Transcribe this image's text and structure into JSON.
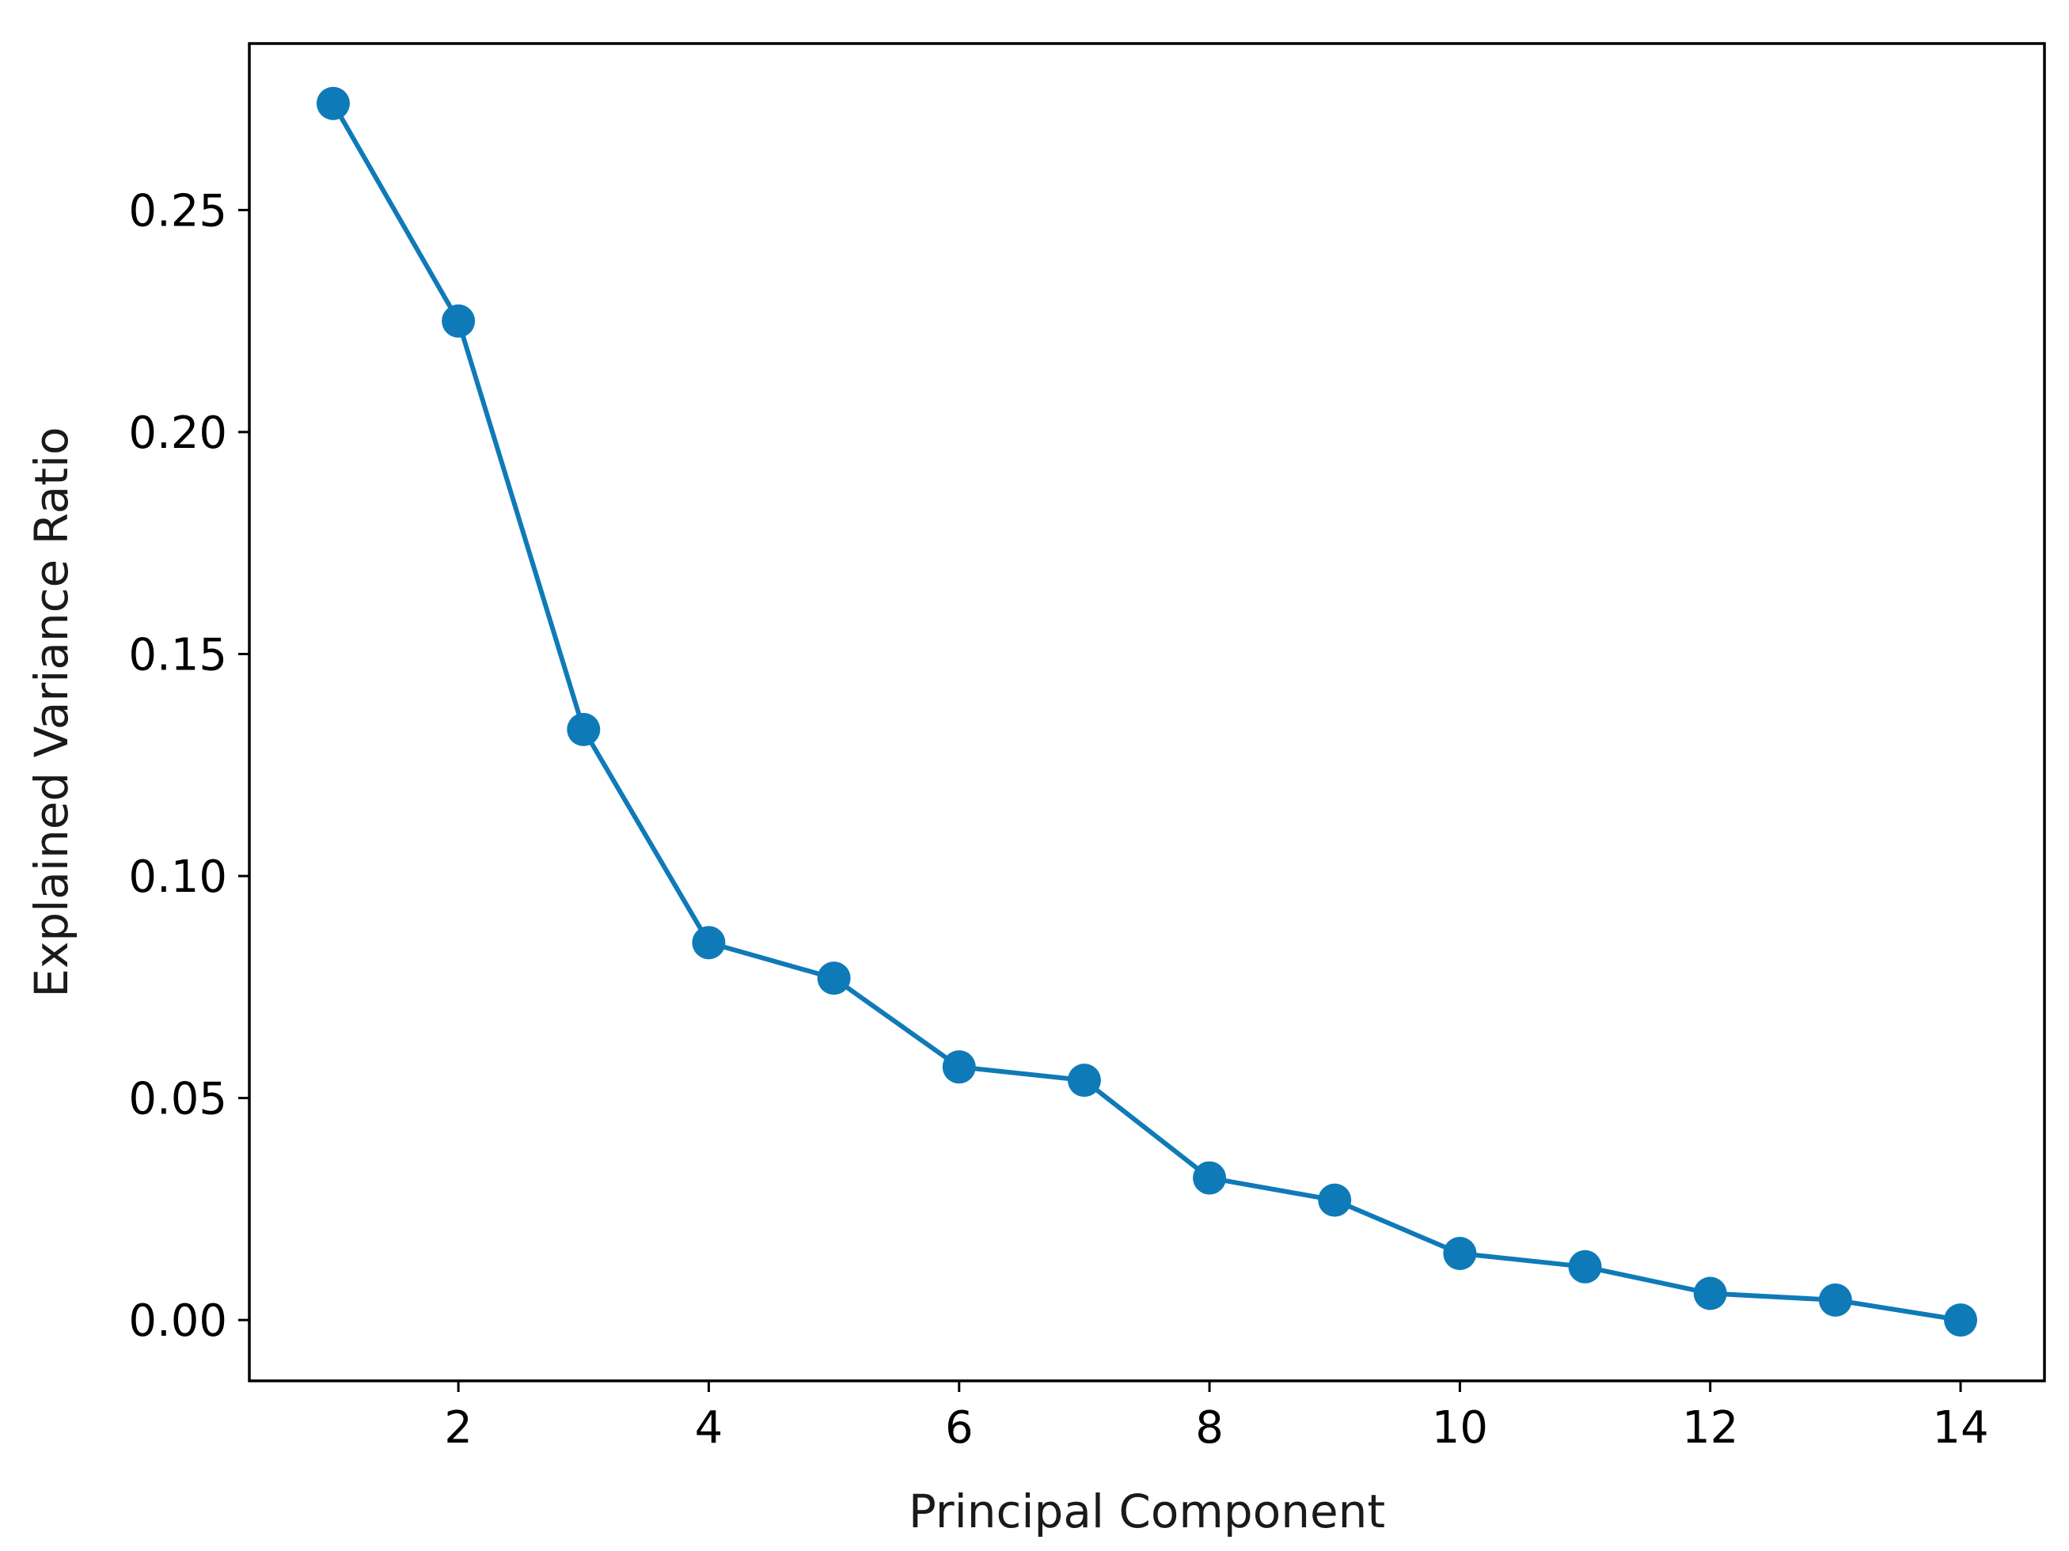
{
  "chart_data": {
    "type": "line",
    "title": "",
    "xlabel": "Principal Component",
    "ylabel": "Explained Variance Ratio",
    "xlim": [
      0.33,
      14.67
    ],
    "ylim": [
      -0.0137,
      0.2875
    ],
    "x_ticks": [
      2,
      4,
      6,
      8,
      10,
      12,
      14
    ],
    "x_tick_labels": [
      "2",
      "4",
      "6",
      "8",
      "10",
      "12",
      "14"
    ],
    "y_ticks": [
      0.0,
      0.05,
      0.1,
      0.15,
      0.2,
      0.25
    ],
    "y_tick_labels": [
      "0.00",
      "0.05",
      "0.10",
      "0.15",
      "0.20",
      "0.25"
    ],
    "grid": false,
    "legend": "none",
    "series": [
      {
        "color": "#0f7ab8",
        "marker": "circle",
        "x": [
          1,
          2,
          3,
          4,
          5,
          6,
          7,
          8,
          9,
          10,
          11,
          12,
          13,
          14
        ],
        "y": [
          0.274,
          0.225,
          0.133,
          0.085,
          0.077,
          0.057,
          0.054,
          0.032,
          0.027,
          0.015,
          0.012,
          0.006,
          0.0045,
          0.0
        ]
      }
    ]
  }
}
